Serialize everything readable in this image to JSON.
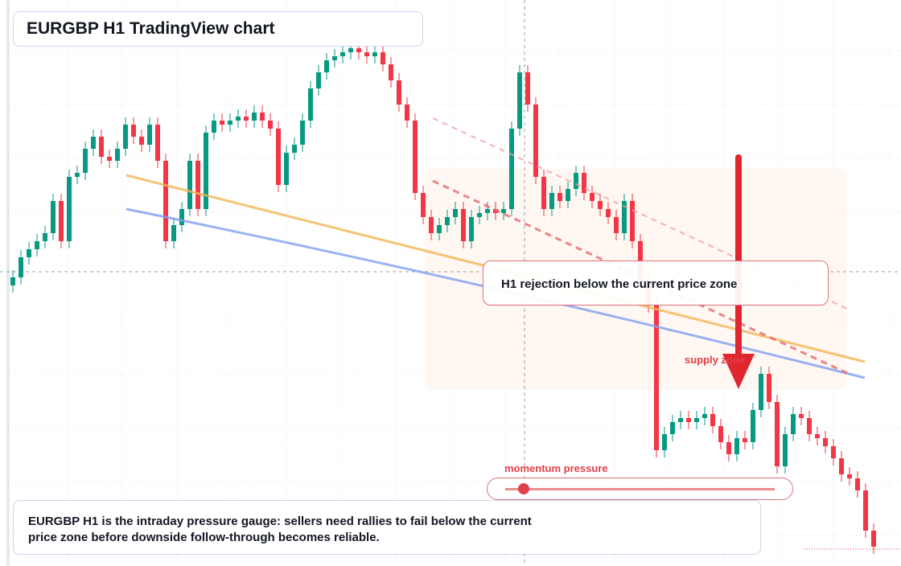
{
  "header": {
    "title": "EURGBP H1 TradingView chart"
  },
  "annotations": {
    "rejection": "H1 rejection below the current price zone",
    "supply": "supply zone",
    "momentum": "momentum pressure"
  },
  "note": "EURGBP H1 is the intraday pressure gauge: sellers need rallies to fail below the current price zone before downside follow-through becomes reliable."
}
